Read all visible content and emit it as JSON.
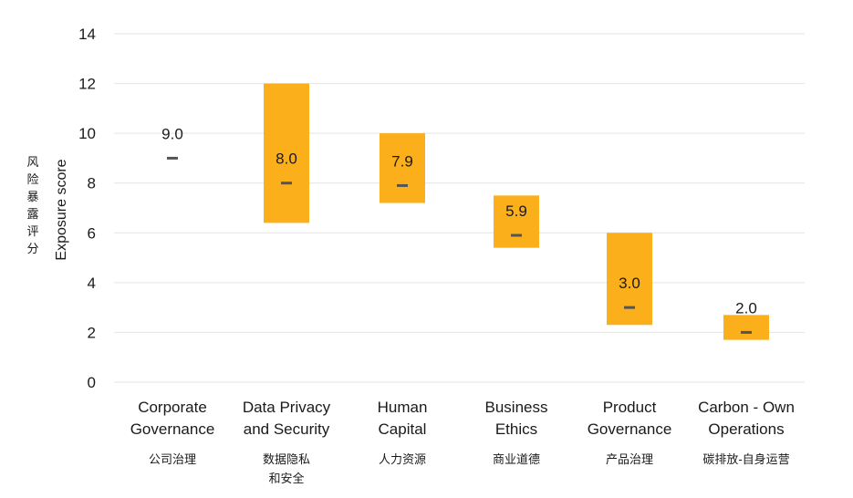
{
  "chart_data": {
    "type": "floating-bar",
    "ylabel": "Exposure score",
    "ylabel_cn": "风险暴露评分",
    "ylim": [
      0,
      14
    ],
    "yticks": [
      0,
      2,
      4,
      6,
      8,
      10,
      12,
      14
    ],
    "grid": true,
    "categories": [
      {
        "name": "Corporate Governance",
        "lines": [
          "Corporate",
          "Governance"
        ],
        "cn_lines": [
          "公司治理"
        ]
      },
      {
        "name": "Data Privacy and Security",
        "lines": [
          "Data Privacy",
          "and Security"
        ],
        "cn_lines": [
          "数据隐私",
          "和安全"
        ]
      },
      {
        "name": "Human Capital",
        "lines": [
          "Human",
          "Capital"
        ],
        "cn_lines": [
          "人力资源"
        ]
      },
      {
        "name": "Business Ethics",
        "lines": [
          "Business",
          "Ethics"
        ],
        "cn_lines": [
          "商业道德"
        ]
      },
      {
        "name": "Product Governance",
        "lines": [
          "Product",
          "Governance"
        ],
        "cn_lines": [
          "产品治理"
        ]
      },
      {
        "name": "Carbon - Own Operations",
        "lines": [
          "Carbon - Own",
          "Operations"
        ],
        "cn_lines": [
          "碳排放-自身运营"
        ]
      }
    ],
    "series": [
      {
        "values": [
          9.0,
          8.0,
          7.9,
          5.9,
          3.0,
          2.0
        ],
        "labels": [
          "9.0",
          "8.0",
          "7.9",
          "5.9",
          "3.0",
          "2.0"
        ]
      },
      {
        "low": [
          null,
          6.4,
          7.2,
          5.4,
          2.3,
          1.7
        ],
        "high": [
          null,
          12.0,
          10.0,
          7.5,
          6.0,
          2.7
        ]
      }
    ],
    "colors": {
      "bar": "#fbaf1a",
      "marker": "#555555",
      "grid": "#e4e4e4"
    }
  }
}
